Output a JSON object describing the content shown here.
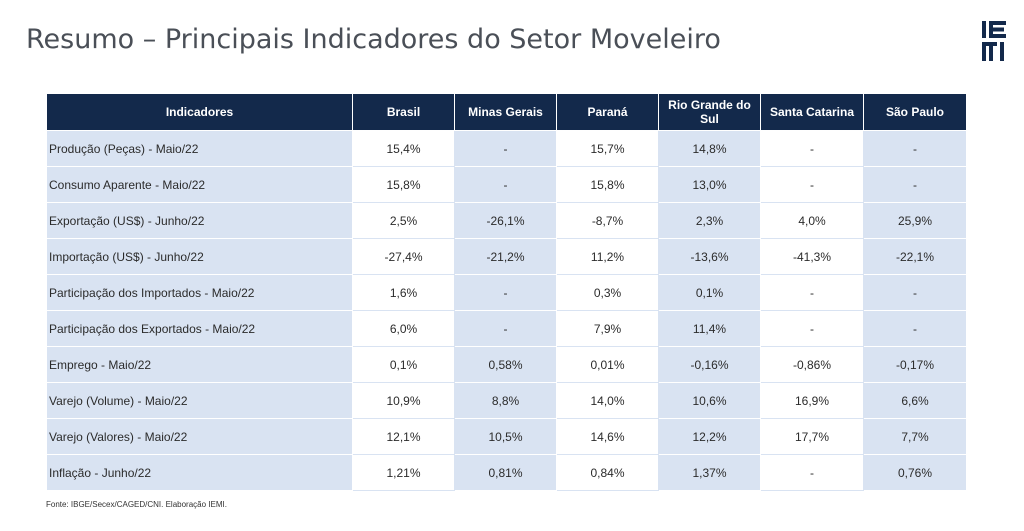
{
  "page": {
    "title": "Resumo – Principais Indicadores do Setor Moveleiro",
    "source": "Fonte: IBGE/Secex/CAGED/CNI. Elaboração IEMI.",
    "logo_text": "IEMI"
  },
  "colors": {
    "header_bg": "#13294b",
    "row_bg": "#d9e3f2",
    "logo": "#13294b"
  },
  "table": {
    "headers": [
      "Indicadores",
      "Brasil",
      "Minas Gerais",
      "Paraná",
      "Rio Grande do Sul",
      "Santa Catarina",
      "São Paulo"
    ],
    "rows": [
      [
        "Produção (Peças) - Maio/22",
        "15,4%",
        "-",
        "15,7%",
        "14,8%",
        "-",
        "-"
      ],
      [
        "Consumo Aparente - Maio/22",
        "15,8%",
        "-",
        "15,8%",
        "13,0%",
        "-",
        "-"
      ],
      [
        "Exportação (US$) - Junho/22",
        "2,5%",
        "-26,1%",
        "-8,7%",
        "2,3%",
        "4,0%",
        "25,9%"
      ],
      [
        "Importação (US$) - Junho/22",
        "-27,4%",
        "-21,2%",
        "11,2%",
        "-13,6%",
        "-41,3%",
        "-22,1%"
      ],
      [
        "Participação dos Importados - Maio/22",
        "1,6%",
        "-",
        "0,3%",
        "0,1%",
        "-",
        "-"
      ],
      [
        "Participação dos Exportados - Maio/22",
        "6,0%",
        "-",
        "7,9%",
        "11,4%",
        "-",
        "-"
      ],
      [
        "Emprego - Maio/22",
        "0,1%",
        "0,58%",
        "0,01%",
        "-0,16%",
        "-0,86%",
        "-0,17%"
      ],
      [
        "Varejo (Volume) - Maio/22",
        "10,9%",
        "8,8%",
        "14,0%",
        "10,6%",
        "16,9%",
        "6,6%"
      ],
      [
        "Varejo (Valores) - Maio/22",
        "12,1%",
        "10,5%",
        "14,6%",
        "12,2%",
        "17,7%",
        "7,7%"
      ],
      [
        "Inflação - Junho/22",
        "1,21%",
        "0,81%",
        "0,84%",
        "1,37%",
        "-",
        "0,76%"
      ]
    ]
  }
}
